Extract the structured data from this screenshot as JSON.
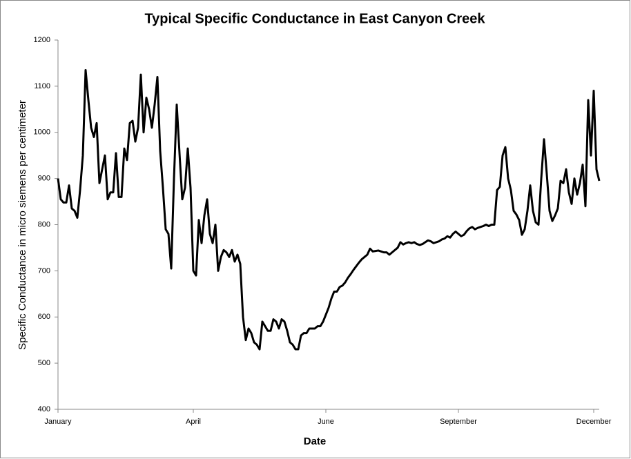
{
  "chart_data": {
    "type": "line",
    "title": "Typical Specific Conductance in East Canyon Creek",
    "x_label": "Date",
    "y_label": "Specific Conductance in micro siemens per centimeter",
    "categories": [
      "January",
      null,
      null,
      null,
      null,
      null,
      null,
      null,
      null,
      null,
      null,
      null,
      null,
      null,
      null,
      null,
      null,
      null,
      null,
      null,
      null,
      null,
      null,
      null,
      null,
      null,
      null,
      null,
      null,
      null,
      null,
      null,
      null,
      null,
      null,
      null,
      null,
      null,
      null,
      null,
      null,
      null,
      null,
      null,
      null,
      null,
      null,
      null,
      null,
      "April",
      null,
      null,
      null,
      null,
      null,
      null,
      null,
      null,
      null,
      null,
      null,
      null,
      null,
      null,
      null,
      null,
      null,
      null,
      null,
      null,
      null,
      null,
      null,
      null,
      null,
      null,
      null,
      null,
      null,
      null,
      null,
      null,
      null,
      null,
      null,
      null,
      null,
      null,
      null,
      null,
      null,
      null,
      null,
      null,
      null,
      null,
      null,
      "June",
      null,
      null,
      null,
      null,
      null,
      null,
      null,
      null,
      null,
      null,
      null,
      null,
      null,
      null,
      null,
      null,
      null,
      null,
      null,
      null,
      null,
      null,
      null,
      null,
      null,
      null,
      null,
      null,
      null,
      null,
      null,
      null,
      null,
      null,
      null,
      null,
      null,
      null,
      null,
      null,
      null,
      null,
      null,
      null,
      null,
      null,
      null,
      "September",
      null,
      null,
      null,
      null,
      null,
      null,
      null,
      null,
      null,
      null,
      null,
      null,
      null,
      null,
      null,
      null,
      null,
      null,
      null,
      null,
      null,
      null,
      null,
      null,
      null,
      null,
      null,
      null,
      null,
      null,
      null,
      null,
      null,
      null,
      null,
      null,
      null,
      null,
      null,
      null,
      null,
      null,
      null,
      null,
      null,
      null,
      null,
      null,
      "December",
      null,
      null
    ],
    "series": [
      {
        "name": "Specific Conductance",
        "color": "#000000",
        "values": [
          900,
          855,
          848,
          848,
          885,
          835,
          830,
          815,
          875,
          950,
          1135,
          1070,
          1010,
          990,
          1020,
          890,
          920,
          950,
          855,
          870,
          870,
          955,
          860,
          860,
          965,
          940,
          1020,
          1025,
          980,
          1010,
          1125,
          1000,
          1075,
          1050,
          1010,
          1060,
          1120,
          960,
          880,
          790,
          780,
          705,
          900,
          1060,
          955,
          855,
          880,
          965,
          880,
          700,
          690,
          810,
          760,
          820,
          855,
          780,
          760,
          800,
          700,
          730,
          745,
          740,
          730,
          745,
          720,
          735,
          715,
          600,
          550,
          575,
          565,
          545,
          540,
          530,
          590,
          580,
          570,
          570,
          595,
          590,
          575,
          595,
          590,
          570,
          545,
          540,
          530,
          530,
          560,
          565,
          565,
          575,
          575,
          575,
          580,
          580,
          590,
          605,
          620,
          640,
          655,
          655,
          665,
          668,
          675,
          685,
          693,
          702,
          710,
          718,
          725,
          730,
          735,
          748,
          742,
          743,
          744,
          742,
          740,
          740,
          735,
          740,
          745,
          750,
          762,
          757,
          760,
          762,
          760,
          762,
          758,
          756,
          758,
          762,
          766,
          764,
          760,
          762,
          764,
          768,
          770,
          775,
          772,
          780,
          785,
          780,
          775,
          778,
          786,
          792,
          795,
          790,
          793,
          795,
          797,
          800,
          797,
          800,
          800,
          875,
          882,
          950,
          968,
          900,
          875,
          830,
          822,
          810,
          778,
          790,
          830,
          885,
          830,
          805,
          800,
          900,
          985,
          910,
          830,
          808,
          820,
          835,
          895,
          890,
          920,
          870,
          845,
          900,
          865,
          890,
          930,
          840,
          1070,
          950,
          1090,
          920,
          895
        ]
      }
    ],
    "ylim": [
      400,
      1200
    ],
    "yticks": [
      400,
      500,
      600,
      700,
      800,
      900,
      1000,
      1100,
      1200
    ],
    "grid": false
  }
}
